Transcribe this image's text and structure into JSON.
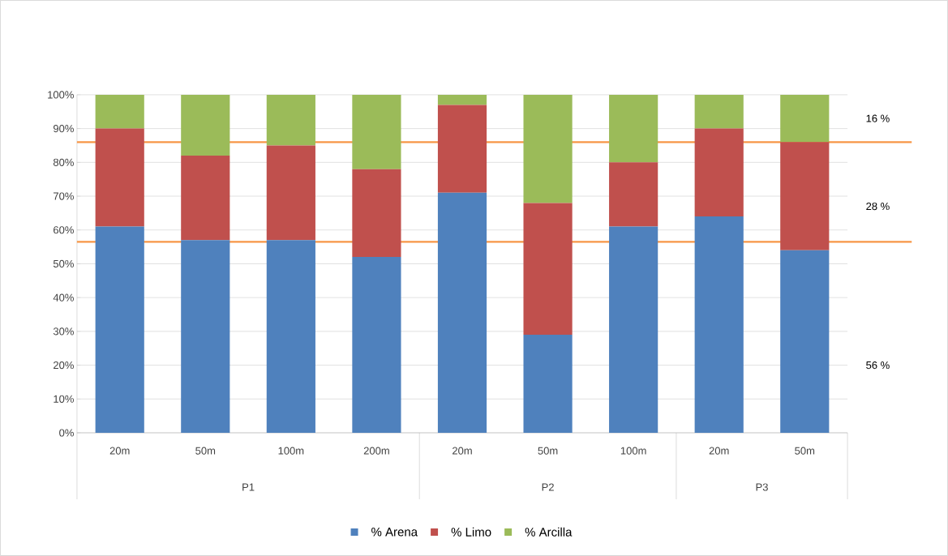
{
  "chart_data": {
    "type": "bar",
    "stacked": true,
    "categories": [
      "20m",
      "50m",
      "100m",
      "200m",
      "20m",
      "50m",
      "100m",
      "20m",
      "50m"
    ],
    "series": [
      {
        "name": "% Arena",
        "color": "#4f81bd",
        "values": [
          61,
          57,
          57,
          52,
          71,
          29,
          61,
          64,
          54
        ]
      },
      {
        "name": "% Limo",
        "color": "#c0504d",
        "values": [
          29,
          25,
          28,
          26,
          26,
          39,
          19,
          26,
          32
        ]
      },
      {
        "name": "% Arcilla",
        "color": "#9bbb59",
        "values": [
          10,
          18,
          15,
          22,
          3,
          32,
          20,
          10,
          14
        ]
      }
    ],
    "ylim": [
      0,
      100
    ],
    "yticks": [
      {
        "value": 0,
        "label": "0%"
      },
      {
        "value": 10,
        "label": "10%"
      },
      {
        "value": 20,
        "label": "20%"
      },
      {
        "value": 30,
        "label": "30%"
      },
      {
        "value": 40,
        "label": "40%"
      },
      {
        "value": 50,
        "label": "50%"
      },
      {
        "value": 60,
        "label": "60%"
      },
      {
        "value": 70,
        "label": "70%"
      },
      {
        "value": 80,
        "label": "80%"
      },
      {
        "value": 90,
        "label": "90%"
      },
      {
        "value": 100,
        "label": "100%"
      }
    ],
    "grid": "y",
    "legend": "bottom",
    "ref_lines": [
      {
        "axis": "y",
        "value": 86,
        "color": "#f79646"
      },
      {
        "axis": "y",
        "value": 56.5,
        "color": "#f79646"
      }
    ],
    "annotations": [
      "16 %",
      "28 %",
      "56 %",
      "P1",
      "P2",
      "P3"
    ]
  }
}
